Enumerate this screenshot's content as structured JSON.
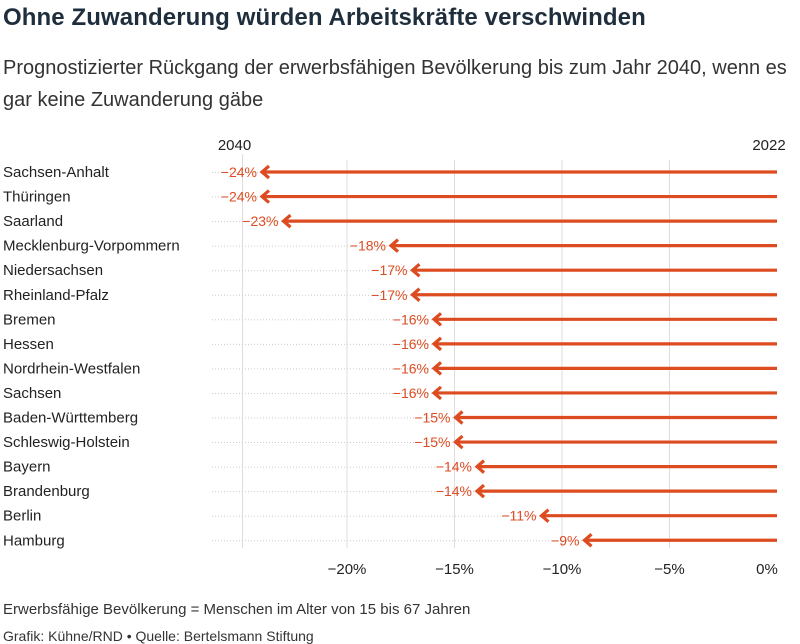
{
  "title": "Ohne Zuwanderung würden Arbeitskräfte verschwinden",
  "subtitle": "Prognostizierter Rückgang der erwerbsfähigen Bevölkerung bis zum Jahr 2040, wenn es gar keine Zuwanderung gäbe",
  "note": "Erwerbsfähige Bevölkerung = Menschen im Alter von 15 bis 67 Jahren",
  "credit": "Grafik: Kühne/RND • Quelle: Bertelsmann Stiftung",
  "colors": {
    "arrow": "#dd4b21",
    "text": "#222222",
    "grid": "#dddddd"
  },
  "chart_data": {
    "type": "bar",
    "orientation": "horizontal",
    "style": "arrow",
    "start_label": "2022",
    "end_label": "2040",
    "categories": [
      "Sachsen-Anhalt",
      "Thüringen",
      "Saarland",
      "Mecklenburg-Vorpommern",
      "Niedersachsen",
      "Rheinland-Pfalz",
      "Bremen",
      "Hessen",
      "Nordrhein-Westfalen",
      "Sachsen",
      "Baden-Württemberg",
      "Schleswig-Holstein",
      "Bayern",
      "Brandenburg",
      "Berlin",
      "Hamburg"
    ],
    "values": [
      -24,
      -24,
      -23,
      -18,
      -17,
      -17,
      -16,
      -16,
      -16,
      -16,
      -15,
      -15,
      -14,
      -14,
      -11,
      -9
    ],
    "value_labels": [
      "−24%",
      "−24%",
      "−23%",
      "−18%",
      "−17%",
      "−17%",
      "−16%",
      "−16%",
      "−16%",
      "−16%",
      "−15%",
      "−15%",
      "−14%",
      "−14%",
      "−11%",
      "−9%"
    ],
    "x_ticks": [
      -20,
      -15,
      -10,
      -5,
      0
    ],
    "x_tick_labels": [
      "−20%",
      "−15%",
      "−10%",
      "−5%",
      "0%"
    ],
    "xlim": [
      -25,
      0
    ],
    "grid": true
  }
}
